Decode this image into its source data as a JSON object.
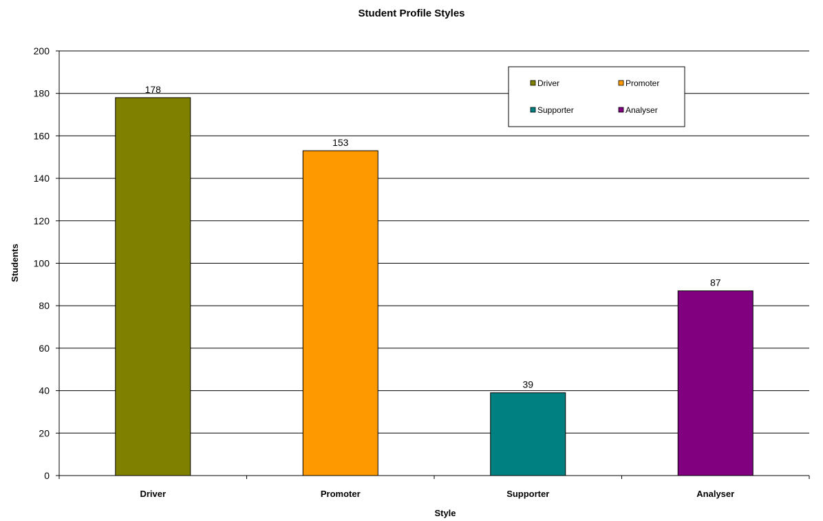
{
  "chart_data": {
    "type": "bar",
    "title": "Student Profile Styles",
    "xlabel": "Style",
    "ylabel": "Students",
    "categories": [
      "Driver",
      "Promoter",
      "Supporter",
      "Analyser"
    ],
    "values": [
      178,
      153,
      39,
      87
    ],
    "colors": [
      "#808000",
      "#FF9900",
      "#008080",
      "#800080"
    ],
    "ylim": [
      0,
      200
    ],
    "yticks": [
      0,
      20,
      40,
      60,
      80,
      100,
      120,
      140,
      160,
      180,
      200
    ],
    "grid": true,
    "legend": {
      "position": "top-right",
      "entries": [
        "Driver",
        "Promoter",
        "Supporter",
        "Analyser"
      ]
    },
    "data_labels": true
  }
}
